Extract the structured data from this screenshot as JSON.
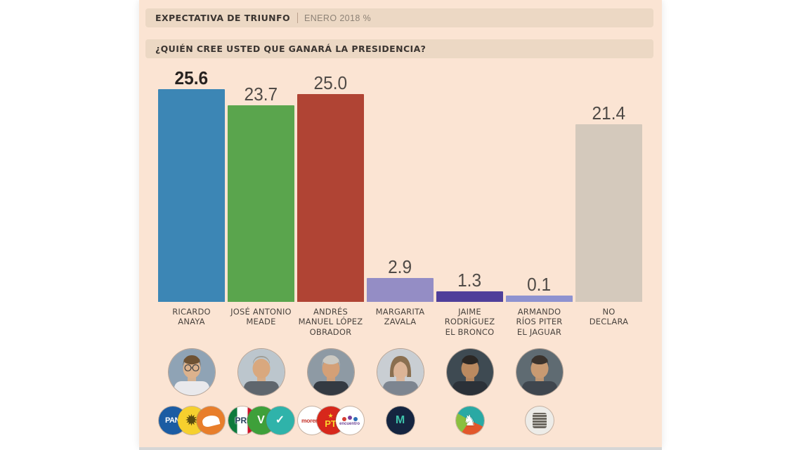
{
  "header": {
    "title": "EXPECTATIVA DE TRIUNFO",
    "subtitle": "ENERO 2018 %",
    "question": "¿QUIÉN CREE USTED QUE GANARÁ LA PRESIDENCIA?"
  },
  "chart_data": {
    "type": "bar",
    "title": "Expectativa de triunfo",
    "subtitle": "Enero 2018, %",
    "question": "¿Quién cree usted que ganará la presidencia?",
    "unit": "%",
    "ylim": [
      0,
      28
    ],
    "grid": false,
    "legend": "none",
    "categories": [
      "RICARDO ANAYA",
      "JOSÉ ANTONIO MEADE",
      "ANDRÉS MANUEL LÓPEZ OBRADOR",
      "MARGARITA ZAVALA",
      "JAIME RODRÍGUEZ EL BRONCO",
      "ARMANDO RÍOS PITER EL JAGUAR",
      "NO DECLARA"
    ],
    "values": [
      25.6,
      23.7,
      25.0,
      2.9,
      1.3,
      0.1,
      21.4
    ],
    "bar_colors": [
      "#3c86b5",
      "#5aa54d",
      "#b04434",
      "#948dc5",
      "#4f3f9a",
      "#8e92d0",
      "#d4c9bc"
    ]
  },
  "candidates": [
    {
      "slug": "ricardo-anaya",
      "name_lines": [
        "RICARDO",
        "ANAYA"
      ],
      "value_label": "25.6",
      "value_bold": true,
      "bar_color": "#3c86b5",
      "has_avatar": true,
      "avatar": {
        "backdrop": "#8fa3b5",
        "skin": "#dcb28d",
        "hair": "#6e5233",
        "suit": "#e9e9ec",
        "hairStyle": "short",
        "glasses": true
      },
      "parties": [
        "pan",
        "prd",
        "mc"
      ]
    },
    {
      "slug": "jose-antonio-meade",
      "name_lines": [
        "JOSÉ ANTONIO",
        "MEADE"
      ],
      "value_label": "23.7",
      "value_bold": false,
      "bar_color": "#5aa54d",
      "has_avatar": true,
      "avatar": {
        "backdrop": "#bcc6cd",
        "skin": "#d9a87e",
        "hair": "#9b988e",
        "suit": "#5f666d",
        "hairStyle": "bald",
        "glasses": false
      },
      "parties": [
        "pri",
        "pvem",
        "na"
      ]
    },
    {
      "slug": "andres-manuel-lopez-obrador",
      "name_lines": [
        "ANDRÉS",
        "MANUEL LÓPEZ",
        "OBRADOR"
      ],
      "value_label": "25.0",
      "value_bold": false,
      "bar_color": "#b04434",
      "has_avatar": true,
      "avatar": {
        "backdrop": "#8e9aa4",
        "skin": "#d4a077",
        "hair": "#cbc9c2",
        "suit": "#343a42",
        "hairStyle": "short",
        "glasses": false
      },
      "parties": [
        "morena",
        "pt",
        "pes"
      ]
    },
    {
      "slug": "margarita-zavala",
      "name_lines": [
        "MARGARITA",
        "ZAVALA"
      ],
      "value_label": "2.9",
      "value_bold": false,
      "bar_color": "#948dc5",
      "has_avatar": true,
      "avatar": {
        "backdrop": "#c9ced3",
        "skin": "#dcb496",
        "hair": "#8a6f50",
        "suit": "#7d8590",
        "hairStyle": "long",
        "glasses": false
      },
      "parties": [
        "m"
      ]
    },
    {
      "slug": "jaime-rodriguez-el-bronco",
      "name_lines": [
        "JAIME",
        "RODRÍGUEZ",
        "EL BRONCO"
      ],
      "value_label": "1.3",
      "value_bold": false,
      "bar_color": "#4f3f9a",
      "has_avatar": true,
      "avatar": {
        "backdrop": "#3e4a52",
        "skin": "#bb8a60",
        "hair": "#2b2724",
        "suit": "#2b3138",
        "hairStyle": "short",
        "glasses": false
      },
      "parties": [
        "bronco"
      ]
    },
    {
      "slug": "armando-rios-piter-el-jaguar",
      "name_lines": [
        "ARMANDO",
        "RÍOS PITER",
        "EL JAGUAR"
      ],
      "value_label": "0.1",
      "value_bold": false,
      "bar_color": "#8e92d0",
      "has_avatar": true,
      "avatar": {
        "backdrop": "#5f6b72",
        "skin": "#c89a72",
        "hair": "#3a322c",
        "suit": "#3f464e",
        "hairStyle": "short",
        "glasses": false
      },
      "parties": [
        "jaguar"
      ]
    },
    {
      "slug": "no-declara",
      "name_lines": [
        "NO",
        "DECLARA"
      ],
      "value_label": "21.4",
      "value_bold": false,
      "bar_color": "#d4c9bc",
      "has_avatar": false,
      "parties": []
    }
  ],
  "party_logos": {
    "pan": {
      "label": "PAN",
      "glyph": "PAN"
    },
    "prd": {
      "label": "PRD",
      "glyph": "✹"
    },
    "mc": {
      "label": "Movimiento Ciudadano",
      "kind": "mc"
    },
    "pri": {
      "label": "PRI",
      "glyph": "PRI"
    },
    "pvem": {
      "label": "Partido Verde",
      "glyph": "V"
    },
    "na": {
      "label": "Nueva Alianza",
      "glyph": "✓"
    },
    "morena": {
      "label": "Morena",
      "glyph": "morena"
    },
    "pt": {
      "label": "PT",
      "glyph": "PT",
      "badge": "★"
    },
    "pes": {
      "label": "Encuentro Social",
      "glyph": "encuentro",
      "kind": "pes"
    },
    "m": {
      "label": "Margarita independiente",
      "glyph": "M"
    },
    "bronco": {
      "label": "El Bronco independiente",
      "glyph": "♞"
    },
    "jaguar": {
      "label": "El Jaguar independiente",
      "kind": "jaguar"
    }
  },
  "colors": {
    "panel_bg": "#fbe4d3",
    "band_bg": "#ecd8c4",
    "value_text": "#4f4a46",
    "value_text_bold": "#272220",
    "name_text": "#4a443f",
    "bottom_strip": "#d6d6d6"
  }
}
